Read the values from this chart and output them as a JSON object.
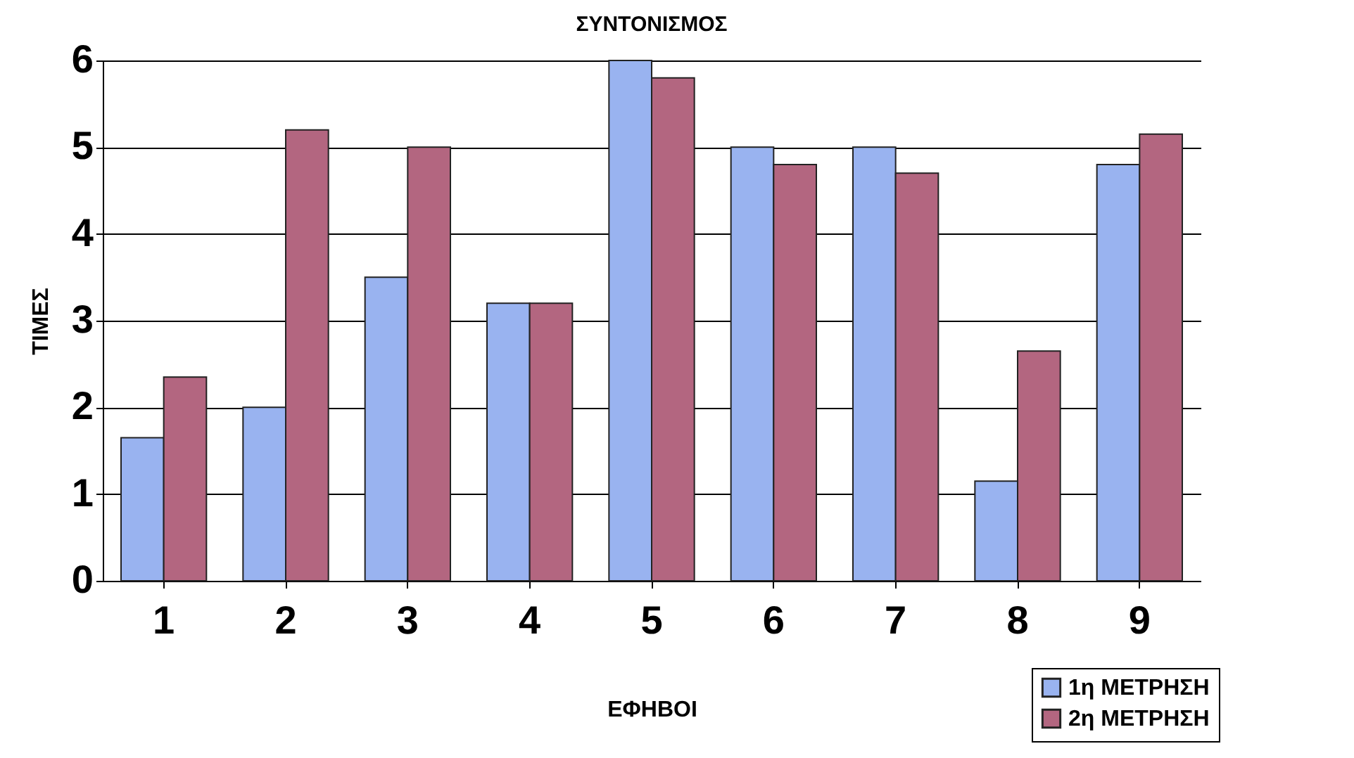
{
  "chart_data": {
    "type": "bar",
    "title": "ΣΥΝΤΟΝΙΣΜΟΣ",
    "xlabel": "ΕΦΗΒΟΙ",
    "ylabel": "ΤΙΜΕΣ",
    "categories": [
      "1",
      "2",
      "3",
      "4",
      "5",
      "6",
      "7",
      "8",
      "9"
    ],
    "series": [
      {
        "name": "1η ΜΕΤΡΗΣΗ",
        "color": "#99b3f0",
        "values": [
          1.65,
          2.0,
          3.5,
          3.2,
          6.0,
          5.0,
          5.0,
          1.15,
          4.8
        ]
      },
      {
        "name": "2η ΜΕΤΡΗΣΗ",
        "color": "#b36680",
        "values": [
          2.35,
          5.2,
          5.0,
          3.2,
          5.8,
          4.8,
          4.7,
          2.65,
          5.15
        ]
      }
    ],
    "ylim": [
      0,
      6
    ],
    "yticks": [
      0,
      1,
      2,
      3,
      4,
      5,
      6
    ],
    "grid": "y",
    "legend": "bottom right"
  }
}
